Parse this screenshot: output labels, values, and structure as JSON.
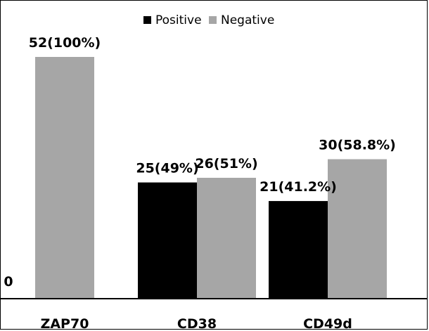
{
  "chart_data": {
    "type": "bar",
    "categories": [
      "ZAP70",
      "CD38",
      "CD49d"
    ],
    "series": [
      {
        "name": "Positive",
        "color": "#000000",
        "values": [
          0,
          25,
          21
        ],
        "labels": [
          "",
          "25(49%)",
          "21(41.2%)"
        ]
      },
      {
        "name": "Negative",
        "color": "#a6a6a6",
        "values": [
          52,
          26,
          30
        ],
        "labels": [
          "52(100%)",
          "26(51%)",
          "30(58.8%)"
        ]
      }
    ],
    "y_tick_label": "0",
    "ylim": [
      0,
      52
    ],
    "legend_position": "top-center",
    "grid": false
  }
}
